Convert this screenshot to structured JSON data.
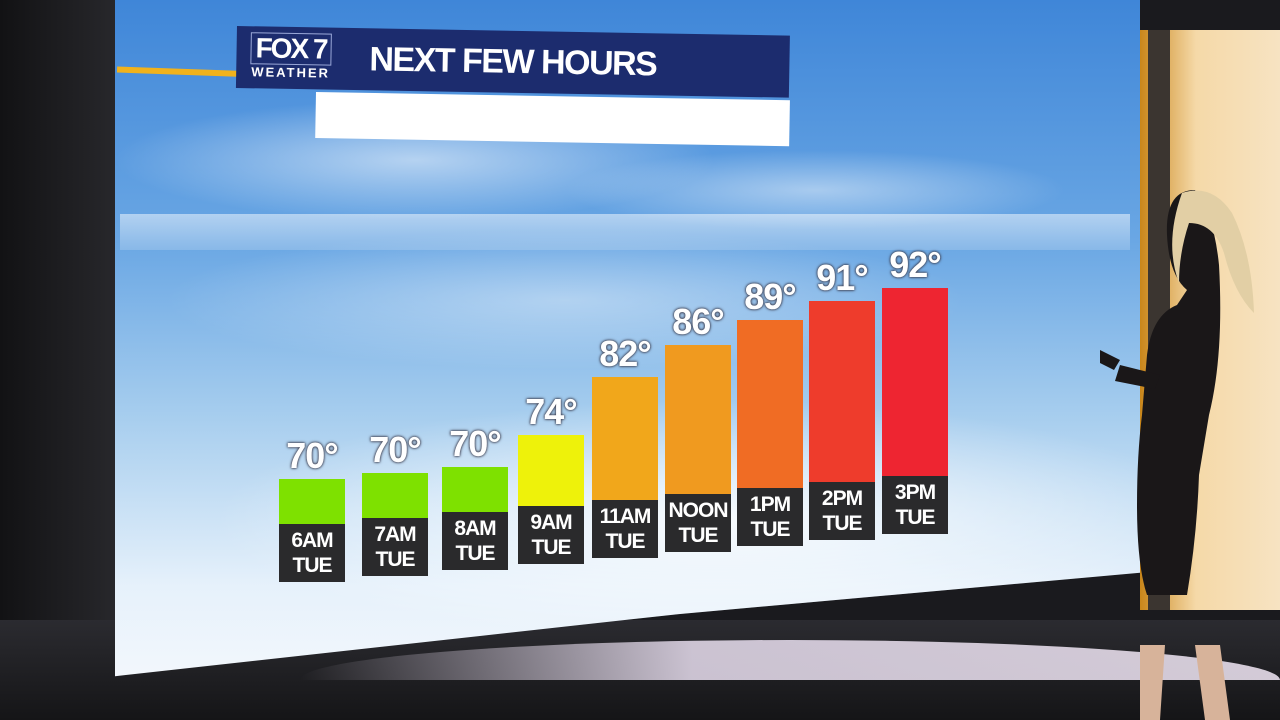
{
  "logo": {
    "brand": "FOX 7",
    "sub": "WEATHER"
  },
  "header": {
    "title": "NEXT FEW HOURS"
  },
  "chart_data": {
    "type": "bar",
    "title": "NEXT FEW HOURS",
    "categories": [
      "6AM TUE",
      "7AM TUE",
      "8AM TUE",
      "9AM TUE",
      "11AM TUE",
      "NOON TUE",
      "1PM TUE",
      "2PM TUE",
      "3PM TUE"
    ],
    "category_lines": [
      [
        "6AM",
        "TUE"
      ],
      [
        "7AM",
        "TUE"
      ],
      [
        "8AM",
        "TUE"
      ],
      [
        "9AM",
        "TUE"
      ],
      [
        "11AM",
        "TUE"
      ],
      [
        "NOON",
        "TUE"
      ],
      [
        "1PM",
        "TUE"
      ],
      [
        "2PM",
        "TUE"
      ],
      [
        "3PM",
        "TUE"
      ]
    ],
    "values": [
      70,
      70,
      70,
      74,
      82,
      86,
      89,
      91,
      92
    ],
    "value_labels": [
      "70°",
      "70°",
      "70°",
      "74°",
      "82°",
      "86°",
      "89°",
      "91°",
      "92°"
    ],
    "unit": "°F",
    "colors": [
      "#7ee100",
      "#7ee100",
      "#7ee100",
      "#eef20a",
      "#f1a71b",
      "#f09a1f",
      "#f06c24",
      "#ee3c2c",
      "#ee2531"
    ],
    "grid": false
  }
}
